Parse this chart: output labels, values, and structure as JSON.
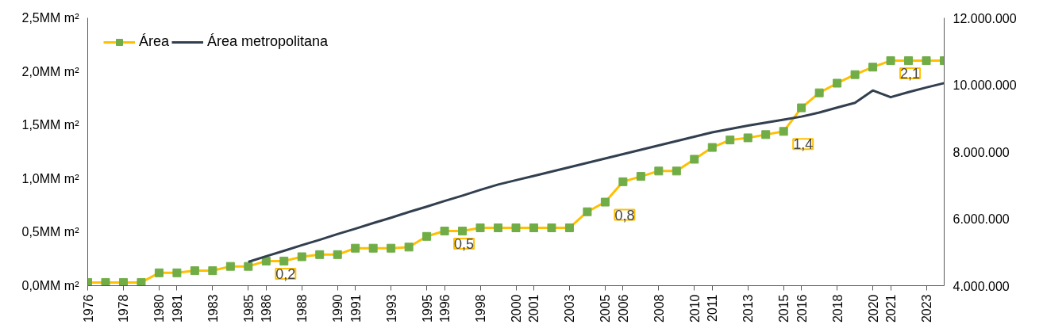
{
  "chart_data": {
    "type": "line",
    "x": [
      1976,
      1977,
      1978,
      1979,
      1980,
      1981,
      1982,
      1983,
      1984,
      1985,
      1986,
      1987,
      1988,
      1989,
      1990,
      1991,
      1992,
      1993,
      1994,
      1995,
      1996,
      1997,
      1998,
      1999,
      2000,
      2001,
      2002,
      2003,
      2004,
      2005,
      2006,
      2007,
      2008,
      2009,
      2010,
      2011,
      2012,
      2013,
      2014,
      2015,
      2016,
      2017,
      2018,
      2019,
      2020,
      2021,
      2022,
      2023,
      2024
    ],
    "series": [
      {
        "name": "Área",
        "color": "#ffc000",
        "marker": "square",
        "values": [
          0.03,
          0.03,
          0.03,
          0.03,
          0.12,
          0.12,
          0.14,
          0.14,
          0.18,
          0.18,
          0.23,
          0.23,
          0.27,
          0.29,
          0.29,
          0.35,
          0.35,
          0.35,
          0.36,
          0.46,
          0.51,
          0.51,
          0.54,
          0.54,
          0.54,
          0.54,
          0.54,
          0.54,
          0.69,
          0.78,
          0.97,
          1.02,
          1.07,
          1.07,
          1.18,
          1.29,
          1.36,
          1.38,
          1.41,
          1.44,
          1.66,
          1.8,
          1.89,
          1.97,
          2.04,
          2.1,
          2.1,
          2.1,
          2.1
        ],
        "value_labels": [
          null,
          null,
          null,
          null,
          null,
          null,
          null,
          null,
          null,
          null,
          "0,2",
          null,
          null,
          null,
          null,
          null,
          null,
          null,
          null,
          null,
          "0,5",
          null,
          null,
          null,
          null,
          null,
          null,
          null,
          null,
          "0,8",
          null,
          null,
          null,
          null,
          null,
          null,
          null,
          null,
          null,
          "1,4",
          null,
          null,
          null,
          null,
          null,
          "2,1",
          null,
          null,
          null
        ]
      },
      {
        "name": "Área metropolitana",
        "color": "#323f4f",
        "axis": "y2",
        "values": [
          null,
          null,
          null,
          null,
          null,
          null,
          null,
          null,
          null,
          4710000,
          4880000,
          5040000,
          5210000,
          5370000,
          5540000,
          5700000,
          5870000,
          6030000,
          6200000,
          6360000,
          6530000,
          6690000,
          6860000,
          7020000,
          7150000,
          7280000,
          7410000,
          7540000,
          7670000,
          7800000,
          7930000,
          8060000,
          8190000,
          8320000,
          8450000,
          8580000,
          8680000,
          8780000,
          8870000,
          8960000,
          9050000,
          9170000,
          9320000,
          9460000,
          9830000,
          9630000,
          9780000,
          9920000,
          10050000
        ]
      }
    ],
    "xlim": [
      1976,
      2024
    ],
    "xticks": [
      1976,
      1978,
      1980,
      1981,
      1983,
      1985,
      1986,
      1988,
      1990,
      1991,
      1993,
      1995,
      1996,
      1998,
      2000,
      2001,
      2003,
      2005,
      2006,
      2008,
      2010,
      2011,
      2013,
      2015,
      2016,
      2018,
      2020,
      2021,
      2023
    ],
    "ylim": [
      0,
      2.5
    ],
    "yticks": [
      {
        "value": 0,
        "label": "0,0MM m²"
      },
      {
        "value": 0.5,
        "label": "0,5MM m²"
      },
      {
        "value": 1,
        "label": "1,0MM m²"
      },
      {
        "value": 1.5,
        "label": "1,5MM m²"
      },
      {
        "value": 2,
        "label": "2,0MM m²"
      },
      {
        "value": 2.5,
        "label": "2,5MM m²"
      }
    ],
    "y2lim": [
      4000000,
      12000000
    ],
    "y2ticks": [
      {
        "value": 4000000,
        "label": "4.000.000"
      },
      {
        "value": 6000000,
        "label": "6.000.000"
      },
      {
        "value": 8000000,
        "label": "8.000.000"
      },
      {
        "value": 10000000,
        "label": "10.000.000"
      },
      {
        "value": 12000000,
        "label": "12.000.000"
      }
    ],
    "grid": false,
    "legend": "top left"
  }
}
